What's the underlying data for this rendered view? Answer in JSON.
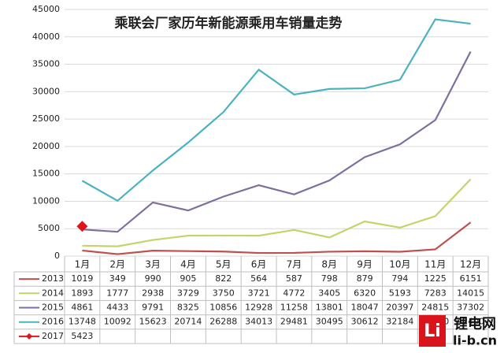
{
  "chart_data": {
    "type": "line",
    "title": "乘联会厂家历年新能源乘用车销量走势",
    "categories": [
      "1月",
      "2月",
      "3月",
      "4月",
      "5月",
      "6月",
      "7月",
      "8月",
      "9月",
      "10月",
      "11月",
      "12月"
    ],
    "series": [
      {
        "name": "2013",
        "color": "#c0504d",
        "values": [
          1019,
          349,
          990,
          905,
          822,
          564,
          587,
          798,
          879,
          794,
          1225,
          6151
        ]
      },
      {
        "name": "2014",
        "color": "#c4d46a",
        "values": [
          1893,
          1777,
          2938,
          3729,
          3750,
          3721,
          4772,
          3405,
          6320,
          5193,
          7283,
          14015
        ]
      },
      {
        "name": "2015",
        "color": "#7f6f9e",
        "values": [
          4861,
          4433,
          9791,
          8325,
          10856,
          12928,
          11258,
          13801,
          18047,
          20397,
          24815,
          37302
        ]
      },
      {
        "name": "2016",
        "color": "#4bb3c0",
        "values": [
          13748,
          10092,
          15623,
          20714,
          26288,
          34013,
          29481,
          30495,
          30612,
          32184,
          43200,
          42400
        ]
      },
      {
        "name": "2017",
        "color": "#e0141e",
        "values": [
          5423,
          null,
          null,
          null,
          null,
          null,
          null,
          null,
          null,
          null,
          null,
          null
        ]
      }
    ],
    "ylim": [
      0,
      45000
    ],
    "yticks": [
      0,
      5000,
      10000,
      15000,
      20000,
      25000,
      30000,
      35000,
      40000,
      45000
    ],
    "grid": true,
    "watermark": {
      "logo": "Li",
      "name": "锂电网",
      "site": "li-b.cn"
    }
  }
}
